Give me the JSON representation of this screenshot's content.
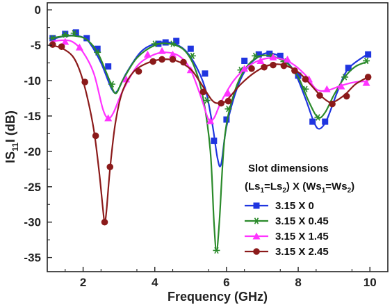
{
  "chart_data": {
    "type": "line",
    "xlabel": "Frequency (GHz)",
    "ylabel": {
      "prefix": "IS",
      "sub": "11",
      "suffix": "I (dB)"
    },
    "xlim": [
      1.0,
      10.5
    ],
    "ylim": [
      -37,
      1
    ],
    "xticks": [
      2,
      4,
      6,
      8,
      10
    ],
    "yticks": [
      0,
      -5,
      -10,
      -15,
      -20,
      -25,
      -30,
      -35
    ],
    "grid": false,
    "legend": {
      "placement": "bottom-right",
      "title_line1": "Slot dimensions",
      "title_line2": {
        "a": "(Ls",
        "a_sub": "1",
        "b": "=Ls",
        "b_sub": "2",
        "c": ") X (Ws",
        "c_sub": "1",
        "d": "=Ws",
        "d_sub": "2",
        "e": ")"
      }
    },
    "series": [
      {
        "name": "3.15 X 0",
        "color": "#1f35e0",
        "marker": "square",
        "curve": [
          [
            1.1,
            -4.2
          ],
          [
            1.4,
            -3.8
          ],
          [
            1.7,
            -3.6
          ],
          [
            2.0,
            -3.9
          ],
          [
            2.2,
            -4.8
          ],
          [
            2.5,
            -7.5
          ],
          [
            2.8,
            -11.2
          ],
          [
            2.95,
            -11.5
          ],
          [
            3.2,
            -9.0
          ],
          [
            3.6,
            -6.0
          ],
          [
            4.0,
            -4.8
          ],
          [
            4.4,
            -4.6
          ],
          [
            4.8,
            -5.5
          ],
          [
            5.1,
            -7.5
          ],
          [
            5.4,
            -11.0
          ],
          [
            5.6,
            -16.0
          ],
          [
            5.75,
            -21.0
          ],
          [
            5.85,
            -21.8
          ],
          [
            6.0,
            -16.5
          ],
          [
            6.3,
            -11.0
          ],
          [
            6.6,
            -8.0
          ],
          [
            7.0,
            -6.3
          ],
          [
            7.3,
            -6.2
          ],
          [
            7.6,
            -7.0
          ],
          [
            7.9,
            -8.8
          ],
          [
            8.2,
            -12.5
          ],
          [
            8.45,
            -16.0
          ],
          [
            8.6,
            -16.8
          ],
          [
            8.8,
            -15.5
          ],
          [
            9.1,
            -11.5
          ],
          [
            9.4,
            -8.3
          ],
          [
            9.95,
            -6.2
          ]
        ],
        "markers": [
          [
            1.15,
            -4.0
          ],
          [
            1.5,
            -3.4
          ],
          [
            1.8,
            -3.2
          ],
          [
            2.1,
            -4.0
          ],
          [
            2.4,
            -5.5
          ],
          [
            2.7,
            -8.0
          ],
          [
            4.1,
            -4.8
          ],
          [
            4.3,
            -4.6
          ],
          [
            4.6,
            -4.4
          ],
          [
            5.0,
            -5.5
          ],
          [
            5.4,
            -9.0
          ],
          [
            5.65,
            -18.5
          ],
          [
            6.0,
            -15.5
          ],
          [
            6.5,
            -7.2
          ],
          [
            6.9,
            -6.3
          ],
          [
            7.2,
            -6.2
          ],
          [
            7.5,
            -6.5
          ],
          [
            8.0,
            -9.3
          ],
          [
            8.4,
            -15.8
          ],
          [
            8.75,
            -15.8
          ],
          [
            9.4,
            -8.2
          ],
          [
            9.95,
            -6.3
          ]
        ]
      },
      {
        "name": "3.15 X 0.45",
        "color": "#2a8a2a",
        "marker": "asterisk",
        "curve": [
          [
            1.1,
            -4.0
          ],
          [
            1.5,
            -3.7
          ],
          [
            1.8,
            -3.7
          ],
          [
            2.1,
            -4.2
          ],
          [
            2.4,
            -6.0
          ],
          [
            2.7,
            -9.5
          ],
          [
            2.9,
            -11.8
          ],
          [
            3.1,
            -10.0
          ],
          [
            3.5,
            -6.8
          ],
          [
            4.0,
            -5.0
          ],
          [
            4.4,
            -4.8
          ],
          [
            4.8,
            -5.6
          ],
          [
            5.1,
            -8.0
          ],
          [
            5.35,
            -12.5
          ],
          [
            5.55,
            -20.0
          ],
          [
            5.65,
            -30.0
          ],
          [
            5.72,
            -34.0
          ],
          [
            5.8,
            -30.0
          ],
          [
            5.95,
            -18.0
          ],
          [
            6.2,
            -12.0
          ],
          [
            6.5,
            -8.5
          ],
          [
            6.9,
            -6.6
          ],
          [
            7.3,
            -6.6
          ],
          [
            7.7,
            -7.6
          ],
          [
            8.0,
            -9.5
          ],
          [
            8.3,
            -13.0
          ],
          [
            8.55,
            -15.2
          ],
          [
            8.75,
            -14.5
          ],
          [
            9.0,
            -12.0
          ],
          [
            9.3,
            -9.5
          ],
          [
            9.6,
            -8.0
          ],
          [
            9.95,
            -7.3
          ]
        ],
        "markers": [
          [
            1.15,
            -4.0
          ],
          [
            1.5,
            -3.5
          ],
          [
            1.75,
            -3.3
          ],
          [
            2.4,
            -6.0
          ],
          [
            2.8,
            -10.5
          ],
          [
            4.0,
            -4.8
          ],
          [
            4.5,
            -4.8
          ],
          [
            5.05,
            -6.5
          ],
          [
            5.45,
            -12.8
          ],
          [
            5.72,
            -34.0
          ],
          [
            6.05,
            -14.0
          ],
          [
            6.4,
            -8.5
          ],
          [
            6.8,
            -6.5
          ],
          [
            7.25,
            -6.5
          ],
          [
            7.6,
            -7.3
          ],
          [
            8.2,
            -11.2
          ],
          [
            8.55,
            -15.2
          ],
          [
            9.3,
            -9.5
          ],
          [
            9.9,
            -7.2
          ]
        ]
      },
      {
        "name": "3.15 X 1.45",
        "color": "#ff33ff",
        "marker": "triangle",
        "curve": [
          [
            1.1,
            -4.5
          ],
          [
            1.4,
            -4.3
          ],
          [
            1.7,
            -4.5
          ],
          [
            2.0,
            -6.0
          ],
          [
            2.3,
            -9.0
          ],
          [
            2.55,
            -14.0
          ],
          [
            2.7,
            -15.3
          ],
          [
            2.85,
            -14.5
          ],
          [
            3.1,
            -11.5
          ],
          [
            3.5,
            -8.0
          ],
          [
            3.9,
            -6.5
          ],
          [
            4.3,
            -6.0
          ],
          [
            4.7,
            -6.6
          ],
          [
            5.0,
            -8.5
          ],
          [
            5.3,
            -12.5
          ],
          [
            5.5,
            -15.5
          ],
          [
            5.65,
            -15.3
          ],
          [
            5.85,
            -13.0
          ],
          [
            6.2,
            -10.0
          ],
          [
            6.6,
            -8.0
          ],
          [
            7.0,
            -7.0
          ],
          [
            7.4,
            -6.8
          ],
          [
            7.8,
            -7.5
          ],
          [
            8.2,
            -9.2
          ],
          [
            8.5,
            -11.2
          ],
          [
            8.8,
            -11.4
          ],
          [
            9.2,
            -10.7
          ],
          [
            9.6,
            -10.2
          ],
          [
            9.95,
            -10.1
          ]
        ],
        "markers": [
          [
            1.5,
            -4.5
          ],
          [
            1.9,
            -5.3
          ],
          [
            2.7,
            -15.3
          ],
          [
            3.2,
            -9.8
          ],
          [
            3.8,
            -6.3
          ],
          [
            4.2,
            -5.8
          ],
          [
            4.5,
            -6.3
          ],
          [
            5.0,
            -8.5
          ],
          [
            5.55,
            -15.7
          ],
          [
            6.05,
            -11.8
          ],
          [
            6.5,
            -8.3
          ],
          [
            6.95,
            -7.2
          ],
          [
            7.3,
            -6.7
          ],
          [
            7.7,
            -7.0
          ],
          [
            8.3,
            -9.8
          ],
          [
            8.8,
            -11.2
          ],
          [
            9.2,
            -10.8
          ],
          [
            9.9,
            -10.3
          ]
        ]
      },
      {
        "name": "3.15 X 2.45",
        "color": "#8b1a1a",
        "marker": "circle",
        "curve": [
          [
            1.1,
            -5.0
          ],
          [
            1.4,
            -5.4
          ],
          [
            1.7,
            -6.5
          ],
          [
            1.9,
            -8.5
          ],
          [
            2.1,
            -12.0
          ],
          [
            2.3,
            -17.0
          ],
          [
            2.45,
            -23.0
          ],
          [
            2.55,
            -28.0
          ],
          [
            2.6,
            -30.0
          ],
          [
            2.65,
            -28.5
          ],
          [
            2.75,
            -22.5
          ],
          [
            2.9,
            -16.0
          ],
          [
            3.1,
            -11.5
          ],
          [
            3.4,
            -8.8
          ],
          [
            3.8,
            -7.5
          ],
          [
            4.2,
            -7.0
          ],
          [
            4.6,
            -7.2
          ],
          [
            5.0,
            -8.4
          ],
          [
            5.3,
            -10.5
          ],
          [
            5.6,
            -12.8
          ],
          [
            5.8,
            -13.2
          ],
          [
            6.0,
            -12.8
          ],
          [
            6.4,
            -10.5
          ],
          [
            6.8,
            -8.8
          ],
          [
            7.2,
            -7.8
          ],
          [
            7.6,
            -7.8
          ],
          [
            8.0,
            -8.8
          ],
          [
            8.3,
            -10.3
          ],
          [
            8.6,
            -12.0
          ],
          [
            8.85,
            -13.0
          ],
          [
            9.0,
            -13.0
          ],
          [
            9.3,
            -12.0
          ],
          [
            9.6,
            -10.5
          ],
          [
            9.95,
            -9.5
          ]
        ],
        "markers": [
          [
            1.15,
            -4.9
          ],
          [
            1.4,
            -5.2
          ],
          [
            2.05,
            -10.2
          ],
          [
            2.35,
            -17.8
          ],
          [
            2.6,
            -30.0
          ],
          [
            2.75,
            -22.2
          ],
          [
            3.55,
            -8.7
          ],
          [
            3.95,
            -7.3
          ],
          [
            4.2,
            -7.0
          ],
          [
            4.5,
            -7.0
          ],
          [
            4.8,
            -7.4
          ],
          [
            5.35,
            -11.6
          ],
          [
            5.85,
            -13.2
          ],
          [
            6.05,
            -12.9
          ],
          [
            6.7,
            -8.3
          ],
          [
            7.05,
            -8.1
          ],
          [
            7.3,
            -7.8
          ],
          [
            7.6,
            -7.9
          ],
          [
            7.9,
            -8.6
          ],
          [
            8.2,
            -9.8
          ],
          [
            8.6,
            -12.1
          ],
          [
            8.95,
            -13.3
          ],
          [
            9.35,
            -12.2
          ],
          [
            9.95,
            -9.5
          ]
        ]
      }
    ]
  }
}
